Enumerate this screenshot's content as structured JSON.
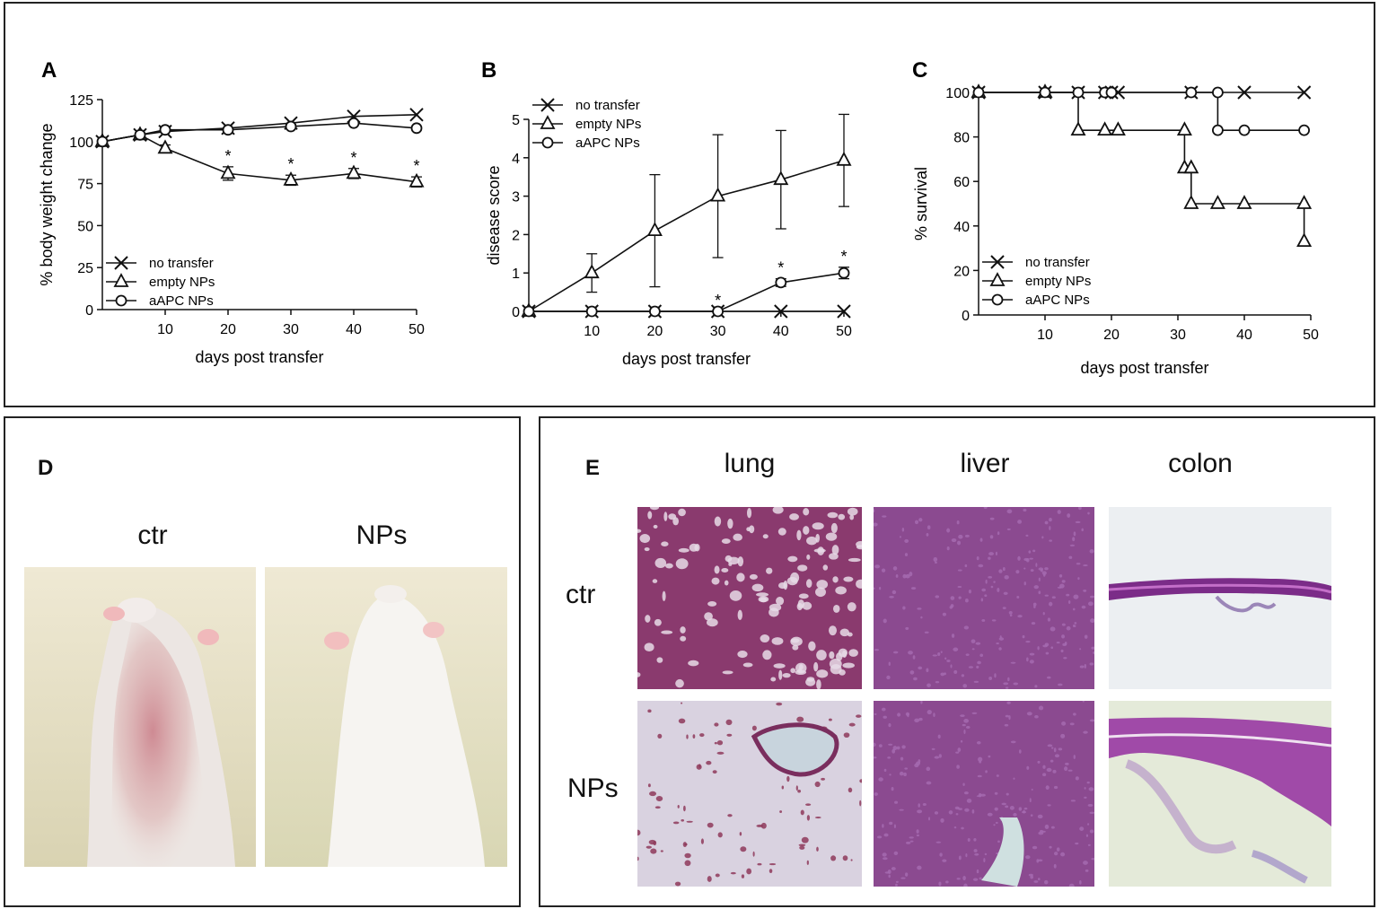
{
  "panels": {
    "a": "A",
    "b": "B",
    "c": "C",
    "d": "D",
    "e": "E"
  },
  "chart_data": [
    {
      "panel": "A",
      "type": "line",
      "xlabel": "days post transfer",
      "ylabel": "% body weight change",
      "xticks": [
        10,
        20,
        30,
        40,
        50
      ],
      "yticks": [
        0,
        25,
        50,
        75,
        100,
        125
      ],
      "xlim": [
        0,
        50
      ],
      "ylim": [
        0,
        125
      ],
      "legend_position": "bottom-left",
      "significance_mark": "*",
      "significant_x": [
        20,
        30,
        40,
        50
      ],
      "series": [
        {
          "name": "no transfer",
          "marker": "x",
          "x": [
            0,
            6,
            10,
            20,
            30,
            40,
            50
          ],
          "y": [
            100,
            104,
            106,
            108,
            111,
            115,
            116
          ]
        },
        {
          "name": "empty NPs",
          "marker": "triangle",
          "x": [
            0,
            6,
            10,
            20,
            30,
            40,
            50
          ],
          "y": [
            100,
            104,
            96,
            81,
            77,
            81,
            76
          ],
          "err": [
            0,
            1,
            2,
            4,
            3,
            3,
            3
          ]
        },
        {
          "name": "aAPC NPs",
          "marker": "circle",
          "x": [
            0,
            6,
            10,
            20,
            30,
            40,
            50
          ],
          "y": [
            100,
            104,
            107,
            107,
            109,
            111,
            108
          ]
        }
      ]
    },
    {
      "panel": "B",
      "type": "line",
      "xlabel": "days post transfer",
      "ylabel": "disease score",
      "xticks": [
        10,
        20,
        30,
        40,
        50
      ],
      "yticks": [
        0,
        1,
        2,
        3,
        4,
        5
      ],
      "xlim": [
        0,
        50
      ],
      "ylim": [
        0,
        5
      ],
      "legend_position": "top-left",
      "significance_mark": "*",
      "significant_x": [
        30,
        40,
        50
      ],
      "series": [
        {
          "name": "no transfer",
          "marker": "x",
          "x": [
            0,
            10,
            20,
            30,
            40,
            50
          ],
          "y": [
            0,
            0,
            0,
            0,
            0,
            0
          ]
        },
        {
          "name": "empty NPs",
          "marker": "triangle",
          "x": [
            0,
            10,
            20,
            30,
            40,
            50
          ],
          "y": [
            0,
            1,
            2.1,
            3,
            3.43,
            3.93
          ],
          "err": [
            0,
            0.5,
            1.46,
            1.6,
            1.28,
            1.2
          ]
        },
        {
          "name": "aAPC NPs",
          "marker": "circle",
          "x": [
            0,
            10,
            20,
            30,
            40,
            50
          ],
          "y": [
            0,
            0,
            0,
            0,
            0.75,
            1.0
          ],
          "err": [
            0,
            0,
            0,
            0,
            0.1,
            0.15
          ]
        }
      ]
    },
    {
      "panel": "C",
      "type": "line",
      "step": true,
      "xlabel": "days post transfer",
      "ylabel": "% survival",
      "xticks": [
        10,
        20,
        30,
        40,
        50
      ],
      "yticks": [
        0,
        20,
        40,
        60,
        80,
        100
      ],
      "xlim": [
        0,
        50
      ],
      "ylim": [
        0,
        100
      ],
      "legend_position": "bottom-left",
      "series": [
        {
          "name": "no transfer",
          "marker": "x",
          "x": [
            0,
            50
          ],
          "y": [
            100,
            100
          ],
          "marks": [
            [
              0,
              100
            ],
            [
              10,
              100
            ],
            [
              15,
              100
            ],
            [
              19,
              100
            ],
            [
              20,
              100
            ],
            [
              21,
              100
            ],
            [
              32,
              100
            ],
            [
              40,
              100
            ],
            [
              49,
              100
            ]
          ]
        },
        {
          "name": "empty NPs",
          "marker": "triangle",
          "x": [
            0,
            15,
            31,
            32,
            49
          ],
          "y": [
            100,
            83,
            66,
            50,
            33
          ],
          "marks": [
            [
              0,
              100
            ],
            [
              10,
              100
            ],
            [
              15,
              83
            ],
            [
              19,
              83
            ],
            [
              21,
              83
            ],
            [
              31,
              83
            ],
            [
              31,
              66
            ],
            [
              32,
              66
            ],
            [
              32,
              50
            ],
            [
              36,
              50
            ],
            [
              40,
              50
            ],
            [
              49,
              50
            ],
            [
              49,
              33
            ]
          ]
        },
        {
          "name": "aAPC NPs",
          "marker": "circle",
          "x": [
            0,
            36,
            49
          ],
          "y": [
            100,
            83,
            83
          ],
          "marks": [
            [
              0,
              100
            ],
            [
              10,
              100
            ],
            [
              15,
              100
            ],
            [
              19,
              100
            ],
            [
              20,
              100
            ],
            [
              32,
              100
            ],
            [
              36,
              100
            ],
            [
              36,
              83
            ],
            [
              40,
              83
            ],
            [
              49,
              83
            ]
          ]
        }
      ]
    }
  ],
  "panel_d": {
    "labels": [
      "ctr",
      "NPs"
    ]
  },
  "panel_e": {
    "columns": [
      "lung",
      "liver",
      "colon"
    ],
    "rows": [
      "ctr",
      "NPs"
    ]
  }
}
